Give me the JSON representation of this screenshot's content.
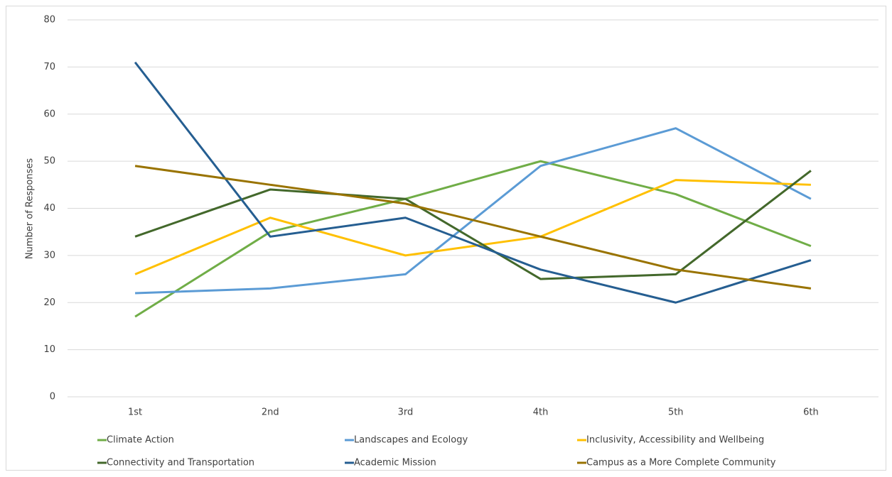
{
  "chart_data": {
    "type": "line",
    "y_label": "Number of Responses",
    "categories": [
      "1st",
      "2nd",
      "3rd",
      "4th",
      "5th",
      "6th"
    ],
    "series": [
      {
        "name": "Climate Action",
        "color": "#70ad47",
        "values": [
          17,
          35,
          42,
          50,
          43,
          32
        ]
      },
      {
        "name": "Landscapes and Ecology",
        "color": "#5b9bd5",
        "values": [
          22,
          23,
          26,
          49,
          57,
          42
        ]
      },
      {
        "name": "Inclusivity, Accessibility and Wellbeing",
        "color": "#ffc000",
        "values": [
          26,
          38,
          30,
          34,
          46,
          45
        ]
      },
      {
        "name": "Connectivity and Transportation",
        "color": "#43682b",
        "values": [
          34,
          44,
          42,
          25,
          26,
          48
        ]
      },
      {
        "name": "Academic Mission",
        "color": "#255e91",
        "values": [
          71,
          34,
          38,
          27,
          20,
          29
        ]
      },
      {
        "name": "Campus as a More Complete Community",
        "color": "#997300",
        "values": [
          49,
          45,
          41,
          34,
          27,
          23
        ]
      }
    ],
    "ylim": [
      0,
      80
    ],
    "yticks": [
      0,
      10,
      20,
      30,
      40,
      50,
      60,
      70,
      80
    ],
    "grid": true
  }
}
